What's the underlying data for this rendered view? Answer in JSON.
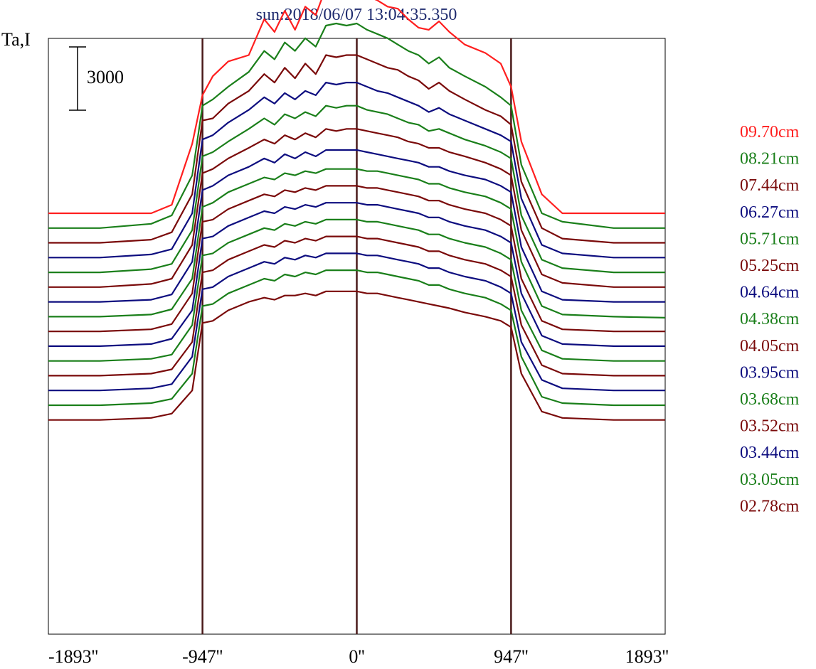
{
  "chart_data": {
    "type": "line",
    "title": "sun:2018/06/07 13:04:35.350",
    "ylabel": "Ta,I",
    "scale_bar_label": "3000",
    "scale_bar_value": 3000,
    "x_ticks": [
      "-1893''",
      "-947''",
      "0''",
      "947''",
      "1893''"
    ],
    "x_tick_values": [
      -1893,
      -947,
      0,
      947,
      1893
    ],
    "xlim": [
      -1893,
      1893
    ],
    "vertical_markers": [
      -947,
      0,
      947
    ],
    "legend_placement": "right",
    "x": [
      -1893,
      -1577,
      -1262,
      -1136,
      -1010,
      -947,
      -884,
      -789,
      -663,
      -568,
      -505,
      -442,
      -379,
      -316,
      -252,
      -189,
      -126,
      -63,
      0,
      63,
      126,
      189,
      252,
      316,
      379,
      442,
      505,
      568,
      663,
      789,
      884,
      947,
      1010,
      1136,
      1262,
      1577,
      1893
    ],
    "series": [
      {
        "name": "09.70cm",
        "color": "#ff1f1f",
        "offset": 0,
        "values": [
          0,
          0,
          0,
          400,
          3300,
          5600,
          6500,
          7200,
          7500,
          9200,
          8600,
          9600,
          8700,
          9800,
          9400,
          10700,
          10500,
          10800,
          10900,
          10300,
          10100,
          9800,
          9700,
          9200,
          8800,
          8700,
          9100,
          8600,
          8000,
          7600,
          7100,
          6000,
          3400,
          900,
          0,
          0,
          0
        ]
      },
      {
        "name": "08.21cm",
        "color": "#1a7f1a",
        "offset": 700,
        "values": [
          0,
          0,
          200,
          600,
          2500,
          5800,
          6100,
          6700,
          7400,
          8400,
          8000,
          8800,
          8400,
          9000,
          8600,
          9600,
          9700,
          9600,
          9700,
          9400,
          9200,
          9000,
          8700,
          8400,
          8200,
          7800,
          8100,
          7600,
          7200,
          6700,
          6200,
          5800,
          3000,
          700,
          300,
          0,
          0
        ]
      },
      {
        "name": "07.44cm",
        "color": "#7a0a0a",
        "offset": 1400,
        "values": [
          0,
          0,
          150,
          500,
          2300,
          5800,
          5900,
          6600,
          7200,
          8000,
          7600,
          8300,
          7800,
          8500,
          8000,
          8900,
          8800,
          8900,
          8900,
          8700,
          8500,
          8300,
          8200,
          7900,
          7700,
          7300,
          7600,
          7200,
          6800,
          6300,
          6000,
          5600,
          2900,
          700,
          200,
          0,
          0
        ]
      },
      {
        "name": "06.27cm",
        "color": "#0d0d7f",
        "offset": 2100,
        "values": [
          0,
          0,
          150,
          400,
          2100,
          5600,
          5800,
          6400,
          7000,
          7600,
          7300,
          7800,
          7500,
          7900,
          7700,
          8300,
          8200,
          8300,
          8300,
          8100,
          7900,
          7800,
          7600,
          7400,
          7200,
          6900,
          7100,
          6800,
          6500,
          6100,
          5800,
          5500,
          2800,
          600,
          200,
          0,
          0
        ]
      },
      {
        "name": "05.71cm",
        "color": "#1a7f1a",
        "offset": 2800,
        "values": [
          0,
          0,
          150,
          400,
          2000,
          5500,
          5700,
          6200,
          6800,
          7300,
          7000,
          7500,
          7300,
          7600,
          7400,
          7900,
          7800,
          7900,
          7900,
          7700,
          7600,
          7500,
          7300,
          7100,
          7000,
          6700,
          6800,
          6600,
          6300,
          6000,
          5700,
          5400,
          2700,
          600,
          200,
          0,
          0
        ]
      },
      {
        "name": "05.25cm",
        "color": "#7a0a0a",
        "offset": 3500,
        "values": [
          0,
          0,
          150,
          400,
          2000,
          5400,
          5600,
          6100,
          6600,
          7000,
          6800,
          7200,
          7000,
          7300,
          7100,
          7500,
          7400,
          7500,
          7500,
          7400,
          7300,
          7200,
          7100,
          6900,
          6800,
          6600,
          6600,
          6400,
          6200,
          5900,
          5600,
          5300,
          2700,
          600,
          200,
          0,
          0
        ]
      },
      {
        "name": "04.64cm",
        "color": "#0d0d7f",
        "offset": 4200,
        "values": [
          0,
          0,
          100,
          350,
          1900,
          5300,
          5500,
          6000,
          6400,
          6800,
          6600,
          7000,
          6800,
          7100,
          6900,
          7200,
          7200,
          7200,
          7200,
          7100,
          7000,
          6900,
          6800,
          6700,
          6600,
          6400,
          6400,
          6200,
          6000,
          5800,
          5500,
          5200,
          2600,
          500,
          100,
          0,
          0
        ]
      },
      {
        "name": "04.38cm",
        "color": "#1a7f1a",
        "offset": 4900,
        "values": [
          0,
          0,
          100,
          350,
          1800,
          5200,
          5400,
          5900,
          6300,
          6600,
          6500,
          6800,
          6700,
          6900,
          6800,
          7000,
          7000,
          7000,
          7000,
          6900,
          6900,
          6800,
          6700,
          6600,
          6500,
          6300,
          6300,
          6100,
          5900,
          5700,
          5400,
          5100,
          2600,
          500,
          100,
          0,
          -50
        ]
      },
      {
        "name": "04.05cm",
        "color": "#7a0a0a",
        "offset": 5600,
        "values": [
          0,
          0,
          100,
          350,
          1800,
          5200,
          5300,
          5800,
          6200,
          6500,
          6400,
          6700,
          6600,
          6800,
          6700,
          6900,
          6900,
          6900,
          6900,
          6800,
          6800,
          6700,
          6600,
          6500,
          6400,
          6200,
          6200,
          6000,
          5800,
          5600,
          5300,
          5000,
          2500,
          500,
          100,
          0,
          0
        ]
      },
      {
        "name": "03.95cm",
        "color": "#0d0d7f",
        "offset": 6300,
        "values": [
          0,
          0,
          100,
          350,
          1700,
          5100,
          5200,
          5700,
          6100,
          6400,
          6300,
          6600,
          6500,
          6700,
          6600,
          6800,
          6800,
          6800,
          6800,
          6700,
          6700,
          6600,
          6500,
          6400,
          6300,
          6100,
          6100,
          5900,
          5700,
          5500,
          5200,
          4900,
          2500,
          500,
          100,
          0,
          0
        ]
      },
      {
        "name": "03.68cm",
        "color": "#1a7f1a",
        "offset": 7000,
        "values": [
          0,
          0,
          100,
          300,
          1700,
          5000,
          5100,
          5600,
          6000,
          6300,
          6200,
          6500,
          6400,
          6600,
          6500,
          6700,
          6700,
          6700,
          6700,
          6600,
          6600,
          6500,
          6400,
          6300,
          6200,
          6000,
          6000,
          5800,
          5600,
          5400,
          5100,
          4800,
          2400,
          500,
          100,
          0,
          0
        ]
      },
      {
        "name": "03.52cm",
        "color": "#7a0a0a",
        "offset": 7700,
        "values": [
          0,
          0,
          100,
          300,
          1600,
          4900,
          5000,
          5500,
          5900,
          6200,
          6100,
          6400,
          6300,
          6500,
          6400,
          6600,
          6600,
          6600,
          6600,
          6500,
          6500,
          6400,
          6300,
          6200,
          6100,
          5900,
          5900,
          5700,
          5500,
          5300,
          5000,
          4700,
          2400,
          500,
          100,
          0,
          0
        ]
      },
      {
        "name": "03.44cm",
        "color": "#0d0d7f",
        "offset": 8400,
        "values": [
          0,
          0,
          100,
          300,
          1600,
          4800,
          4900,
          5400,
          5800,
          6100,
          6000,
          6300,
          6200,
          6400,
          6300,
          6500,
          6500,
          6500,
          6500,
          6400,
          6400,
          6300,
          6200,
          6100,
          6000,
          5800,
          5800,
          5600,
          5400,
          5200,
          4900,
          4600,
          2300,
          500,
          100,
          0,
          0
        ]
      },
      {
        "name": "03.05cm",
        "color": "#1a7f1a",
        "offset": 9100,
        "values": [
          0,
          0,
          100,
          300,
          1500,
          4700,
          4800,
          5300,
          5700,
          6000,
          5900,
          6200,
          6100,
          6300,
          6200,
          6400,
          6400,
          6400,
          6400,
          6300,
          6300,
          6200,
          6100,
          6000,
          5900,
          5700,
          5700,
          5500,
          5300,
          5100,
          4800,
          4500,
          2300,
          400,
          100,
          0,
          0
        ]
      },
      {
        "name": "02.78cm",
        "color": "#7a0a0a",
        "offset": 9800,
        "values": [
          0,
          0,
          100,
          300,
          1400,
          4600,
          4700,
          5200,
          5600,
          5800,
          5700,
          5900,
          5900,
          6000,
          5900,
          6100,
          6100,
          6100,
          6100,
          6000,
          6000,
          5900,
          5800,
          5700,
          5600,
          5500,
          5400,
          5300,
          5100,
          4900,
          4700,
          4400,
          2200,
          400,
          100,
          0,
          0
        ]
      }
    ]
  }
}
